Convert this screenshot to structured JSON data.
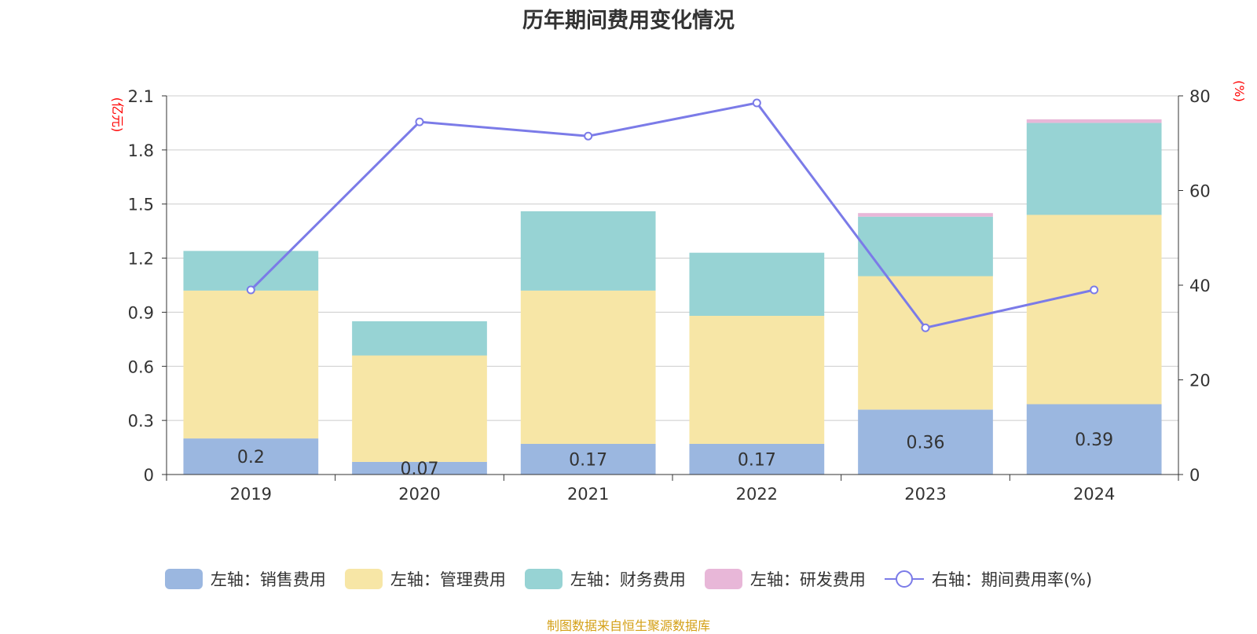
{
  "title": "历年期间费用变化情况",
  "source": "制图数据来自恒生聚源数据库",
  "colors": {
    "sales": "#9bb7e0",
    "admin": "#f7e6a6",
    "finance": "#97d3d4",
    "rnd": "#e8b7d8",
    "rate": "#7b7be8",
    "axis_unit": "#ff0000",
    "grid": "#cccccc",
    "text": "#333333"
  },
  "legend": [
    {
      "label": "左轴：销售费用",
      "color": "#9bb7e0",
      "type": "bar"
    },
    {
      "label": "左轴：管理费用",
      "color": "#f7e6a6",
      "type": "bar"
    },
    {
      "label": "左轴：财务费用",
      "color": "#97d3d4",
      "type": "bar"
    },
    {
      "label": "左轴：研发费用",
      "color": "#e8b7d8",
      "type": "bar"
    },
    {
      "label": "右轴：期间费用率(%)",
      "color": "#7b7be8",
      "type": "line"
    }
  ],
  "chart_data": {
    "type": "bar",
    "stacked": true,
    "categories": [
      "2019",
      "2020",
      "2021",
      "2022",
      "2023",
      "2024"
    ],
    "left_axis": {
      "unit": "(亿元)",
      "ylim": [
        0,
        2.1
      ],
      "ticks": [
        "0",
        "0.3",
        "0.6",
        "0.9",
        "1.2",
        "1.5",
        "1.8",
        "2.1"
      ]
    },
    "right_axis": {
      "unit": "(%)",
      "ylim": [
        0,
        80
      ],
      "ticks": [
        "0",
        "20",
        "40",
        "60",
        "80"
      ]
    },
    "series": [
      {
        "name": "左轴：销售费用",
        "axis": "left",
        "type": "bar",
        "values": [
          0.2,
          0.07,
          0.17,
          0.17,
          0.36,
          0.39
        ],
        "labels": [
          "0.2",
          "0.07",
          "0.17",
          "0.17",
          "0.36",
          "0.39"
        ]
      },
      {
        "name": "左轴：管理费用",
        "axis": "left",
        "type": "bar",
        "values": [
          0.82,
          0.59,
          0.85,
          0.71,
          0.74,
          1.05
        ]
      },
      {
        "name": "左轴：财务费用",
        "axis": "left",
        "type": "bar",
        "values": [
          0.22,
          0.19,
          0.44,
          0.35,
          0.33,
          0.51
        ]
      },
      {
        "name": "左轴：研发费用",
        "axis": "left",
        "type": "bar",
        "values": [
          0,
          0,
          0,
          0,
          0.02,
          0.02
        ]
      },
      {
        "name": "右轴：期间费用率(%)",
        "axis": "right",
        "type": "line",
        "values": [
          39,
          74.5,
          71.5,
          78.5,
          31,
          39
        ]
      }
    ],
    "grid": true,
    "legend_position": "bottom"
  }
}
